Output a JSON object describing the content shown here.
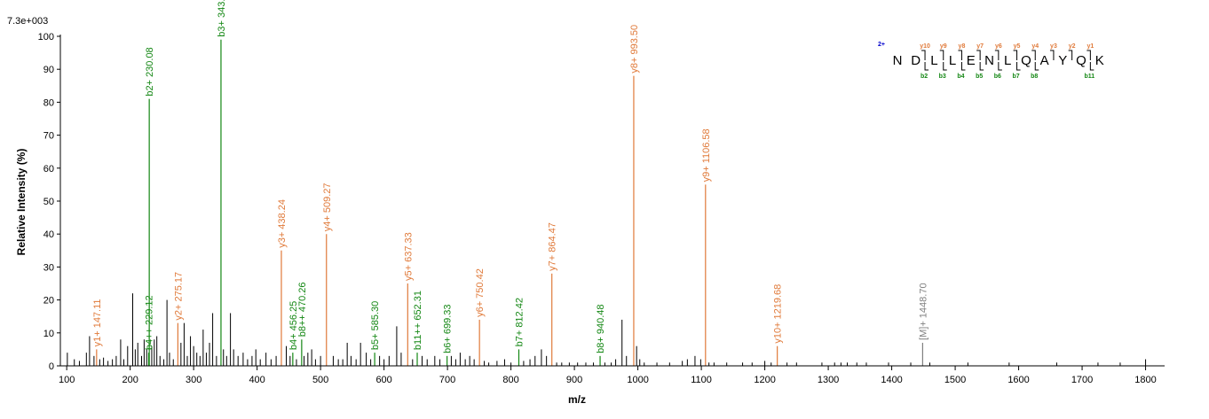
{
  "colors": {
    "b_ion": "#138713",
    "y_ion": "#e07a3a",
    "precursor": "#808080",
    "noise": "#000000",
    "charge": "#0000cc"
  },
  "chart_data": {
    "type": "bar",
    "max_intensity_label": "7.3e+003",
    "xlabel": "m/z",
    "ylabel": "Relative   Intensity (%)",
    "xlim": [
      90,
      1830
    ],
    "ylim": [
      0,
      100
    ],
    "x_ticks": [
      100,
      200,
      300,
      400,
      500,
      600,
      700,
      800,
      900,
      1000,
      1100,
      1200,
      1300,
      1400,
      1500,
      1600,
      1700,
      1800
    ],
    "y_ticks": [
      0,
      10,
      20,
      30,
      40,
      50,
      60,
      70,
      80,
      90,
      100
    ],
    "annotated_peaks": [
      {
        "mz": 147.11,
        "intensity": 5,
        "label": "y1+ 147.11",
        "series": "y"
      },
      {
        "mz": 229.12,
        "intensity": 4,
        "label": "b4++ 229.12",
        "series": "b"
      },
      {
        "mz": 230.08,
        "intensity": 81,
        "label": "b2+ 230.08",
        "series": "b"
      },
      {
        "mz": 275.17,
        "intensity": 13,
        "label": "y2+ 275.17",
        "series": "y"
      },
      {
        "mz": 343.1,
        "intensity": 99,
        "label": "b3+ 343.1",
        "series": "b"
      },
      {
        "mz": 438.24,
        "intensity": 35,
        "label": "y3+ 438.24",
        "series": "y"
      },
      {
        "mz": 456.25,
        "intensity": 4,
        "label": "b4+ 456.25",
        "series": "b"
      },
      {
        "mz": 470.26,
        "intensity": 8,
        "label": "b8++ 470.26",
        "series": "b"
      },
      {
        "mz": 509.27,
        "intensity": 40,
        "label": "y4+ 509.27",
        "series": "y"
      },
      {
        "mz": 585.3,
        "intensity": 4,
        "label": "b5+ 585.30",
        "series": "b"
      },
      {
        "mz": 637.33,
        "intensity": 25,
        "label": "y5+ 637.33",
        "series": "y"
      },
      {
        "mz": 652.31,
        "intensity": 4,
        "label": "b11++ 652.31",
        "series": "b"
      },
      {
        "mz": 699.33,
        "intensity": 3,
        "label": "b6+ 699.33",
        "series": "b"
      },
      {
        "mz": 750.42,
        "intensity": 14,
        "label": "y6+ 750.42",
        "series": "y"
      },
      {
        "mz": 812.42,
        "intensity": 5,
        "label": "b7+ 812.42",
        "series": "b"
      },
      {
        "mz": 864.47,
        "intensity": 28,
        "label": "y7+ 864.47",
        "series": "y"
      },
      {
        "mz": 940.48,
        "intensity": 3,
        "label": "b8+ 940.48",
        "series": "b"
      },
      {
        "mz": 993.5,
        "intensity": 88,
        "label": "y8+ 993.50",
        "series": "y"
      },
      {
        "mz": 1106.58,
        "intensity": 55,
        "label": "y9+ 1106.58",
        "series": "y"
      },
      {
        "mz": 1219.68,
        "intensity": 6,
        "label": "y10+ 1219.68",
        "series": "y"
      },
      {
        "mz": 1448.7,
        "intensity": 7,
        "label": "[M]+ 1448.70",
        "series": "precursor"
      }
    ],
    "unlabeled_peaks": [
      [
        101,
        4
      ],
      [
        112,
        2
      ],
      [
        120,
        1.5
      ],
      [
        131,
        4
      ],
      [
        136,
        9
      ],
      [
        143,
        3
      ],
      [
        152,
        2
      ],
      [
        158,
        2.5
      ],
      [
        165,
        1.5
      ],
      [
        172,
        2
      ],
      [
        178,
        3
      ],
      [
        185,
        8
      ],
      [
        190,
        2
      ],
      [
        196,
        6
      ],
      [
        204,
        22
      ],
      [
        208,
        5
      ],
      [
        212,
        7
      ],
      [
        218,
        3
      ],
      [
        222,
        8
      ],
      [
        226,
        5
      ],
      [
        234,
        6
      ],
      [
        238,
        8
      ],
      [
        242,
        9
      ],
      [
        247,
        3
      ],
      [
        253,
        2
      ],
      [
        258,
        20
      ],
      [
        262,
        4
      ],
      [
        268,
        2
      ],
      [
        280,
        7
      ],
      [
        285,
        13
      ],
      [
        290,
        3
      ],
      [
        295,
        9
      ],
      [
        300,
        6
      ],
      [
        305,
        4
      ],
      [
        310,
        3
      ],
      [
        315,
        11
      ],
      [
        320,
        4
      ],
      [
        325,
        7
      ],
      [
        330,
        16
      ],
      [
        336,
        3
      ],
      [
        347,
        5
      ],
      [
        352,
        3
      ],
      [
        358,
        16
      ],
      [
        363,
        5
      ],
      [
        370,
        3
      ],
      [
        378,
        4
      ],
      [
        385,
        2
      ],
      [
        392,
        3
      ],
      [
        398,
        5
      ],
      [
        405,
        2
      ],
      [
        414,
        4
      ],
      [
        422,
        2
      ],
      [
        430,
        3
      ],
      [
        446,
        6
      ],
      [
        452,
        3
      ],
      [
        462,
        2
      ],
      [
        474,
        3
      ],
      [
        480,
        4
      ],
      [
        486,
        5
      ],
      [
        492,
        2
      ],
      [
        500,
        3
      ],
      [
        520,
        3
      ],
      [
        528,
        2
      ],
      [
        535,
        2
      ],
      [
        542,
        7
      ],
      [
        548,
        3
      ],
      [
        556,
        2
      ],
      [
        563,
        7
      ],
      [
        572,
        4
      ],
      [
        579,
        2
      ],
      [
        593,
        3
      ],
      [
        600,
        2
      ],
      [
        608,
        3
      ],
      [
        620,
        12
      ],
      [
        627,
        4
      ],
      [
        645,
        2
      ],
      [
        660,
        3
      ],
      [
        668,
        2
      ],
      [
        680,
        3
      ],
      [
        688,
        2
      ],
      [
        706,
        3
      ],
      [
        713,
        2
      ],
      [
        720,
        4
      ],
      [
        728,
        2
      ],
      [
        735,
        3
      ],
      [
        742,
        2
      ],
      [
        758,
        1.5
      ],
      [
        765,
        1
      ],
      [
        778,
        1.5
      ],
      [
        790,
        2
      ],
      [
        800,
        1
      ],
      [
        820,
        1.5
      ],
      [
        830,
        2
      ],
      [
        838,
        3
      ],
      [
        848,
        5
      ],
      [
        856,
        3
      ],
      [
        872,
        1
      ],
      [
        880,
        1
      ],
      [
        892,
        1
      ],
      [
        905,
        1
      ],
      [
        918,
        1
      ],
      [
        930,
        1
      ],
      [
        948,
        1
      ],
      [
        958,
        1
      ],
      [
        965,
        2
      ],
      [
        975,
        14
      ],
      [
        982,
        3
      ],
      [
        998,
        6
      ],
      [
        1003,
        2
      ],
      [
        1010,
        1
      ],
      [
        1030,
        1
      ],
      [
        1050,
        1
      ],
      [
        1070,
        1.5
      ],
      [
        1078,
        2
      ],
      [
        1090,
        3
      ],
      [
        1099,
        2
      ],
      [
        1112,
        1
      ],
      [
        1120,
        1
      ],
      [
        1140,
        1
      ],
      [
        1165,
        1
      ],
      [
        1180,
        1
      ],
      [
        1200,
        1.5
      ],
      [
        1210,
        1
      ],
      [
        1235,
        1
      ],
      [
        1250,
        1
      ],
      [
        1290,
        1
      ],
      [
        1310,
        1
      ],
      [
        1320,
        1
      ],
      [
        1330,
        1
      ],
      [
        1345,
        1
      ],
      [
        1360,
        1
      ],
      [
        1395,
        1
      ],
      [
        1430,
        1
      ],
      [
        1460,
        1
      ],
      [
        1520,
        1
      ],
      [
        1585,
        1
      ],
      [
        1660,
        1
      ],
      [
        1725,
        1
      ],
      [
        1760,
        1
      ],
      [
        1800,
        2
      ]
    ]
  },
  "sequence": {
    "charge": "2+",
    "residues": [
      "N",
      "D",
      "L",
      "L",
      "E",
      "N",
      "L",
      "Q",
      "A",
      "Y",
      "Q",
      "K"
    ],
    "y_ions": [
      "y10",
      "y9",
      "y8",
      "y7",
      "y6",
      "y5",
      "y4",
      "y3",
      "y2",
      "y1"
    ],
    "b_ions": [
      "b2",
      "b3",
      "b4",
      "b5",
      "b6",
      "b7",
      "b8",
      "b11"
    ]
  }
}
